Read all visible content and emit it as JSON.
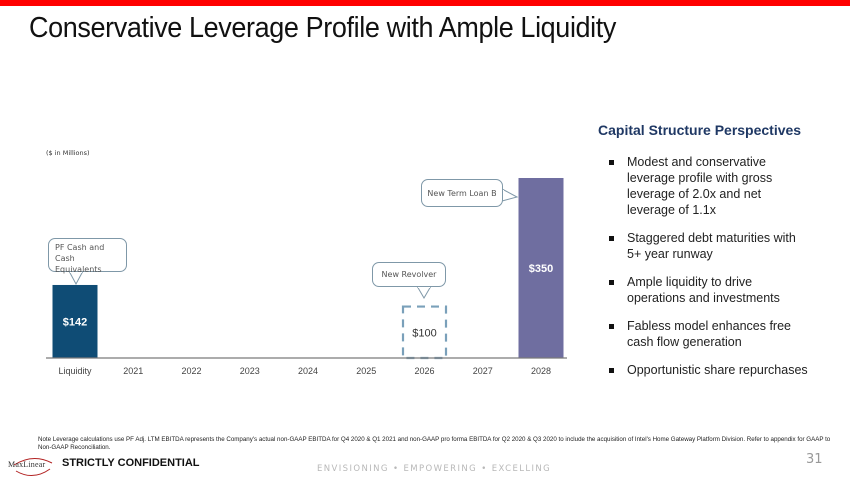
{
  "header": {
    "title": "Conservative Leverage Profile with Ample Liquidity",
    "accent_color": "#ff0000"
  },
  "chart_data": {
    "type": "bar",
    "title": "",
    "units_note": "($ in Millions)",
    "xlabel": "",
    "ylabel": "",
    "ylim": [
      0,
      350
    ],
    "grid": false,
    "categories": [
      "Liquidity",
      "2021",
      "2022",
      "2023",
      "2024",
      "2025",
      "2026",
      "2027",
      "2028"
    ],
    "bars": [
      {
        "category": "Liquidity",
        "value": 142,
        "label": "$142",
        "color": "#0f4c75",
        "style": "solid"
      },
      {
        "category": "2026",
        "value": 100,
        "label": "$100",
        "color": "#7aa0ba",
        "style": "dashed-outline"
      },
      {
        "category": "2028",
        "value": 350,
        "label": "$350",
        "color": "#6f6ea0",
        "style": "solid"
      }
    ],
    "annotations": [
      {
        "text": "PF Cash and Cash Equivalents",
        "target": "Liquidity"
      },
      {
        "text": "New Revolver",
        "target": "2026"
      },
      {
        "text": "New Term Loan B",
        "target": "2028"
      }
    ]
  },
  "sidebar": {
    "heading": "Capital Structure Perspectives",
    "bullets": [
      "Modest and conservative leverage profile with gross leverage of 2.0x and net leverage of 1.1x",
      "Staggered debt maturities with 5+ year runway",
      "Ample liquidity to drive operations and investments",
      "Fabless model enhances free cash flow generation",
      "Opportunistic share repurchases"
    ]
  },
  "footer": {
    "note": "Note Leverage calculations use PF Adj. LTM EBITDA represents the Company's actual non-GAAP EBITDA for Q4 2020 & Q1 2021 and non-GAAP pro forma EBITDA for Q2 2020 & Q3 2020 to include the acquisition of Intel's Home Gateway Platform Division. Refer to appendix for GAAP to Non-GAAP Reconciliation.",
    "logo_text": "MaxLinear",
    "confidential": "STRICTLY CONFIDENTIAL",
    "tagline": "ENVISIONING • EMPOWERING • EXCELLING",
    "page_number": "31"
  }
}
